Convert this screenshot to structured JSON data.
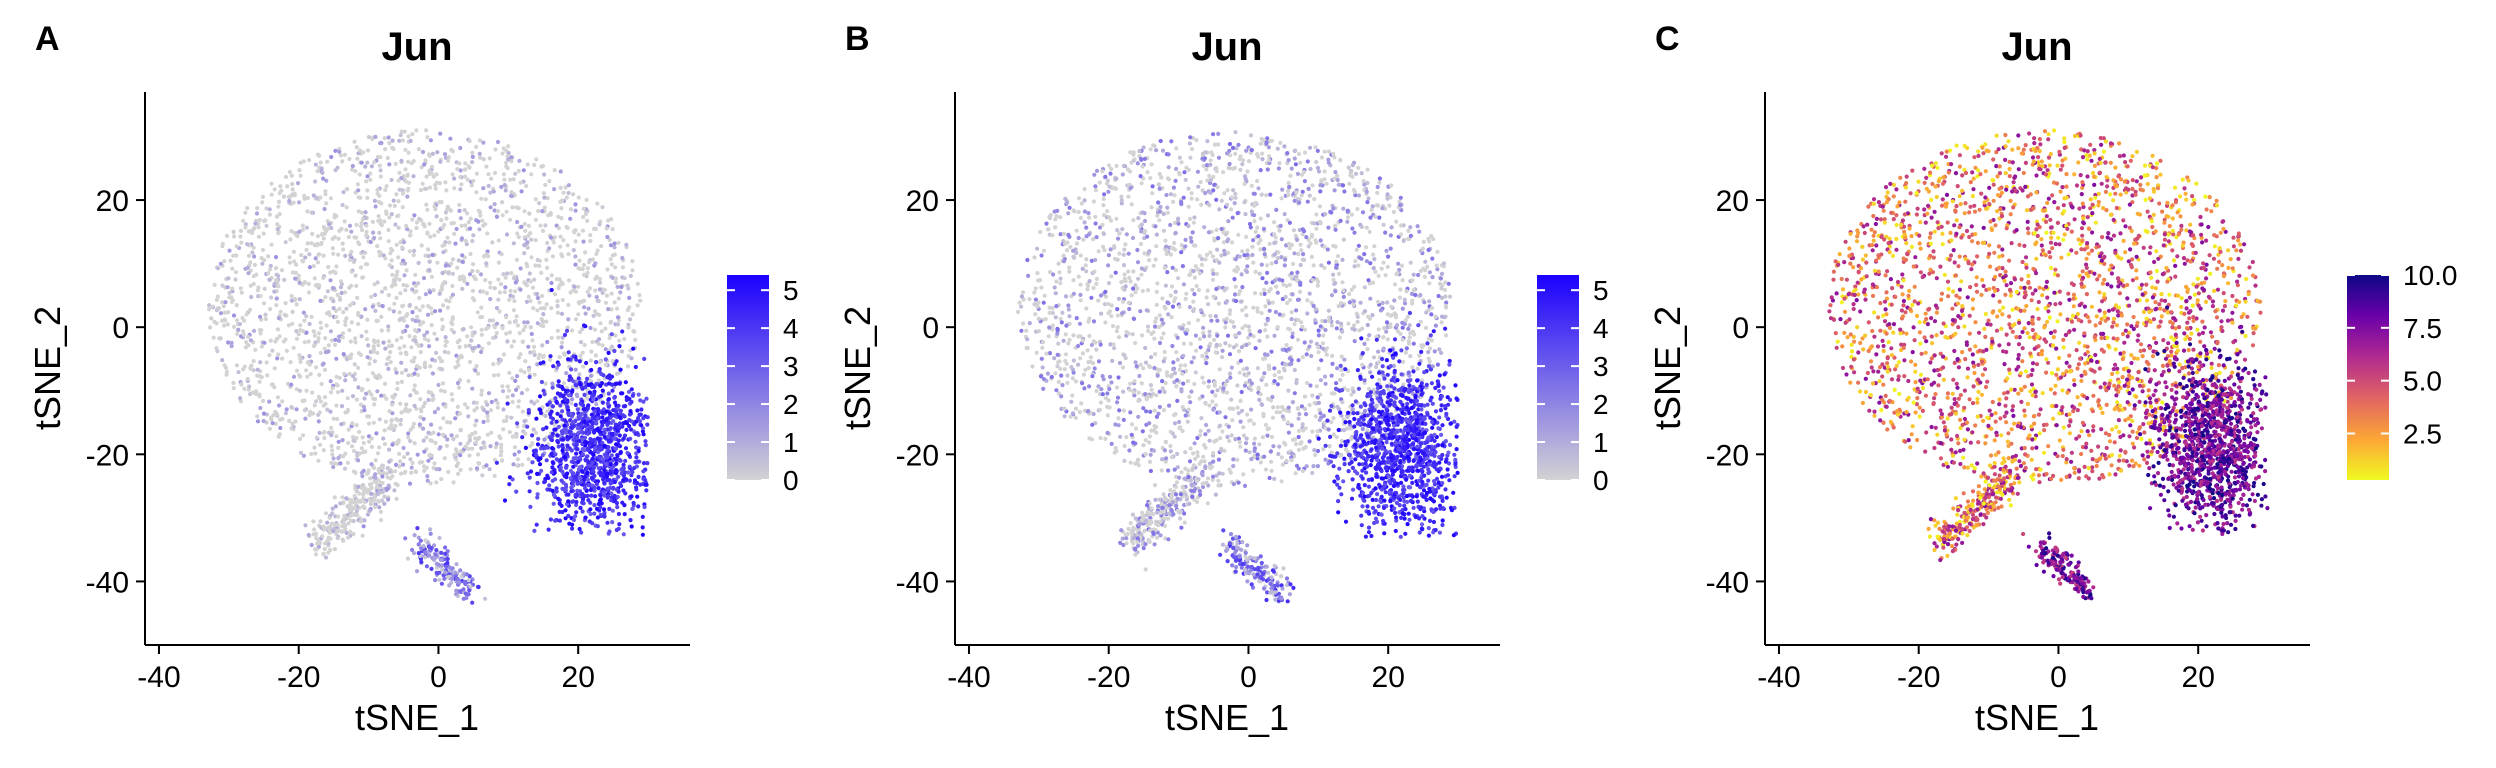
{
  "chart_data": [
    {
      "type": "scatter",
      "panel_label": "A",
      "title": "Jun",
      "xlabel": "tSNE_1",
      "ylabel": "tSNE_2",
      "xlim": [
        -42,
        36
      ],
      "ylim": [
        -50,
        37
      ],
      "xticks": [
        -40,
        -20,
        0,
        20
      ],
      "yticks": [
        -40,
        -20,
        0,
        20
      ],
      "xtick_labels": [
        "-40",
        "-20",
        "0",
        "20"
      ],
      "ytick_labels": [
        "-40",
        "-20",
        "0",
        "20"
      ],
      "grid": false,
      "legend": {
        "position": "right",
        "type": "colorbar",
        "range": [
          0,
          5.4
        ],
        "ticks": [
          0,
          1,
          2,
          3,
          4,
          5
        ],
        "tick_labels": [
          "0",
          "1",
          "2",
          "3",
          "4",
          "5"
        ],
        "low_color": "#d3d3d3",
        "high_color": "#1b00ff"
      },
      "colormap": "grey-to-blue",
      "expression_scale": "low",
      "seed": 11
    },
    {
      "type": "scatter",
      "panel_label": "B",
      "title": "Jun",
      "xlabel": "tSNE_1",
      "ylabel": "tSNE_2",
      "xlim": [
        -42,
        36
      ],
      "ylim": [
        -50,
        37
      ],
      "xticks": [
        -40,
        -20,
        0,
        20
      ],
      "yticks": [
        -40,
        -20,
        0,
        20
      ],
      "xtick_labels": [
        "-40",
        "-20",
        "0",
        "20"
      ],
      "ytick_labels": [
        "-40",
        "-20",
        "0",
        "20"
      ],
      "grid": false,
      "legend": {
        "position": "right",
        "type": "colorbar",
        "range": [
          0,
          5.4
        ],
        "ticks": [
          0,
          1,
          2,
          3,
          4,
          5
        ],
        "tick_labels": [
          "0",
          "1",
          "2",
          "3",
          "4",
          "5"
        ],
        "low_color": "#d3d3d3",
        "high_color": "#1b00ff"
      },
      "colormap": "grey-to-blue",
      "expression_scale": "medium",
      "seed": 23
    },
    {
      "type": "scatter",
      "panel_label": "C",
      "title": "Jun",
      "xlabel": "tSNE_1",
      "ylabel": "tSNE_2",
      "xlim": [
        -42,
        36
      ],
      "ylim": [
        -50,
        37
      ],
      "xticks": [
        -40,
        -20,
        0,
        20
      ],
      "yticks": [
        -40,
        -20,
        0,
        20
      ],
      "xtick_labels": [
        "-40",
        "-20",
        "0",
        "20"
      ],
      "ytick_labels": [
        "-40",
        "-20",
        "0",
        "20"
      ],
      "grid": false,
      "legend": {
        "position": "right",
        "type": "colorbar",
        "range": [
          0.3,
          10.0
        ],
        "ticks": [
          2.5,
          5.0,
          7.5,
          10.0
        ],
        "tick_labels": [
          "2.5",
          "5.0",
          "7.5",
          "10.0"
        ],
        "low_color": "#f0f921",
        "high_color": "#0d0887"
      },
      "colormap": "plasma-reversed",
      "expression_scale": "high",
      "seed": 37
    }
  ]
}
